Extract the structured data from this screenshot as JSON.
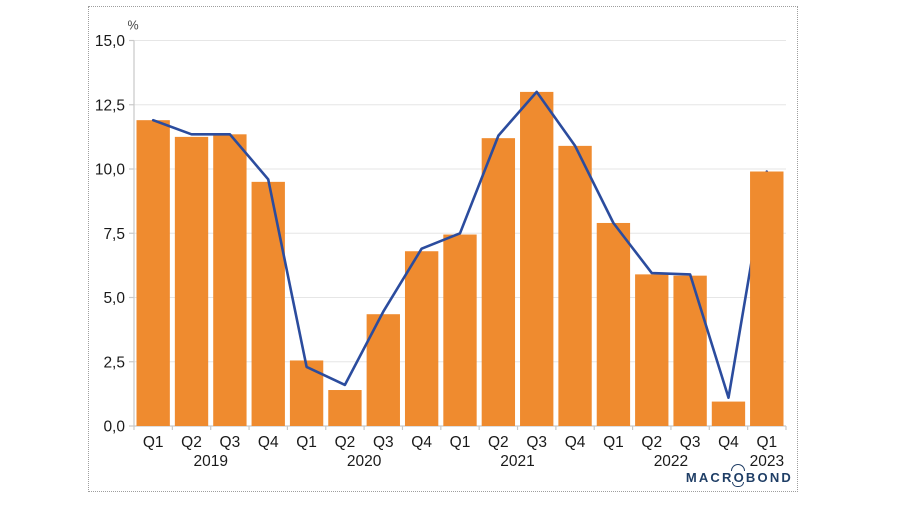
{
  "chart_data": {
    "type": "bar",
    "title": "",
    "xlabel": "",
    "ylabel": "%",
    "unit_label": "%",
    "ylim": [
      0,
      15
    ],
    "ytick_step": 2.5,
    "ytick_labels": [
      "0,0",
      "2,5",
      "5,0",
      "7,5",
      "10,0",
      "12,5",
      "15,0"
    ],
    "grid": true,
    "legend": "none",
    "categories": [
      "Q1",
      "Q2",
      "Q3",
      "Q4",
      "Q1",
      "Q2",
      "Q3",
      "Q4",
      "Q1",
      "Q2",
      "Q3",
      "Q4",
      "Q1",
      "Q2",
      "Q3",
      "Q4",
      "Q1"
    ],
    "year_groups": [
      {
        "label": "2019",
        "quarters": 4
      },
      {
        "label": "2020",
        "quarters": 4
      },
      {
        "label": "2021",
        "quarters": 4
      },
      {
        "label": "2022",
        "quarters": 4
      },
      {
        "label": "2023",
        "quarters": 1
      }
    ],
    "series": [
      {
        "name": "quarterly-value-bars",
        "type": "bar",
        "color": "#EF8B2F",
        "values": [
          11.9,
          11.25,
          11.35,
          9.5,
          2.55,
          1.4,
          4.35,
          6.8,
          7.45,
          11.2,
          13.0,
          10.9,
          7.9,
          5.9,
          5.85,
          0.95,
          9.9
        ]
      },
      {
        "name": "quarterly-value-line",
        "type": "line",
        "color": "#2B4C9E",
        "values": [
          11.9,
          11.35,
          11.35,
          9.6,
          2.3,
          1.6,
          4.45,
          6.9,
          7.5,
          11.3,
          13.0,
          10.9,
          7.9,
          5.95,
          5.9,
          1.1,
          9.9
        ]
      }
    ],
    "colors": {
      "grid_line": "#e6e6e6",
      "axis_line": "#c9c9c9",
      "tick_text": "#1a1a1a",
      "unit_text": "#444444"
    }
  },
  "branding": {
    "logo_prefix": "MACR",
    "logo_o": "O",
    "logo_suffix": "BOND",
    "logo_color": "#1F3E66"
  }
}
